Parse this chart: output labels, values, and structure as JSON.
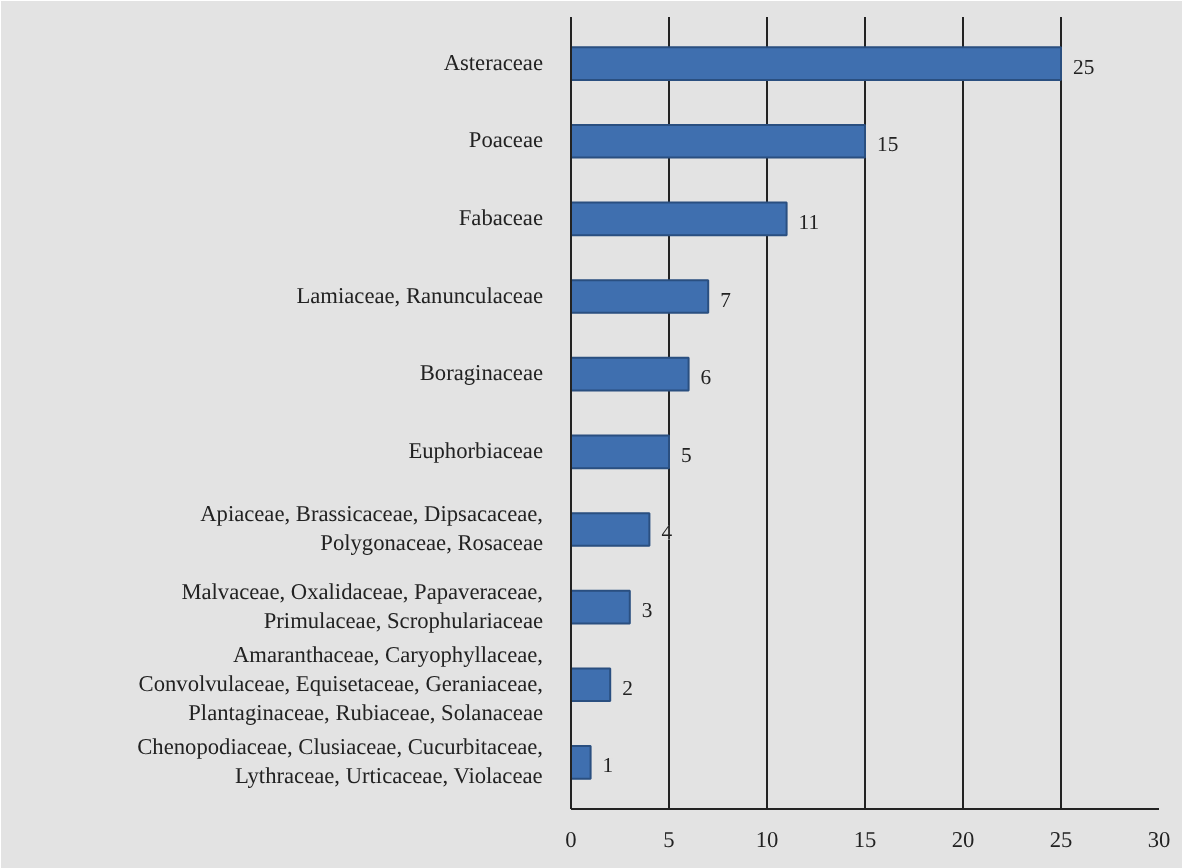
{
  "chart_data": {
    "type": "bar",
    "orientation": "horizontal",
    "categories": [
      "Asteraceae",
      "Poaceae",
      "Fabaceae",
      "Lamiaceae, Ranunculaceae",
      "Boraginaceae",
      "Euphorbiaceae",
      "Apiaceae, Brassicaceae, Dipsacaceae,\nPolygonaceae, Rosaceae",
      "Malvaceae, Oxalidaceae, Papaveraceae,\nPrimulaceae, Scrophulariaceae",
      "Amaranthaceae, Caryophyllaceae,\nConvolvulaceae, Equisetaceae, Geraniaceae,\nPlantaginaceae, Rubiaceae, Solanaceae",
      "Chenopodiaceae, Clusiaceae, Cucurbitaceae,\nLythraceae, Urticaceae, Violaceae"
    ],
    "values": [
      25,
      15,
      11,
      7,
      6,
      5,
      4,
      3,
      2,
      1
    ],
    "color": "#3f6faf",
    "data_labels": true,
    "grid": "x",
    "xlim": [
      0,
      30
    ],
    "xticks": [
      0,
      5,
      10,
      15,
      20,
      25,
      30
    ]
  }
}
